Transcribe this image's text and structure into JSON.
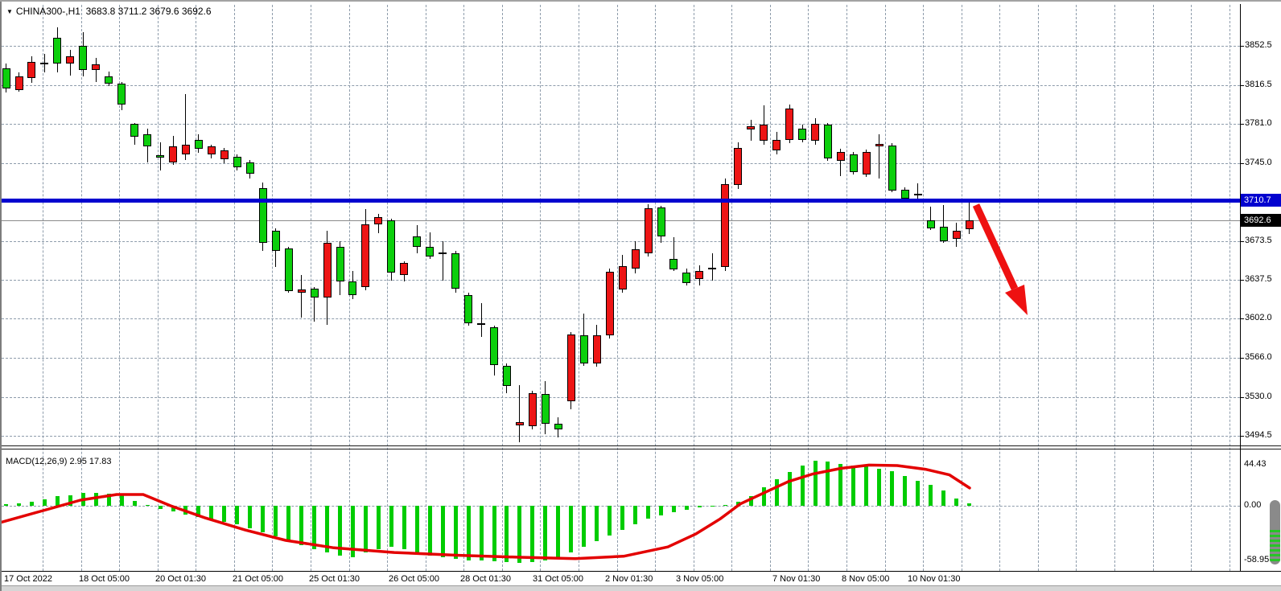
{
  "window": {
    "dropdown_icon": "▼",
    "symbol_period": "CHINA300-,H1",
    "header_ohlc": "3683.8 3711.2 3679.6 3692.6"
  },
  "colors": {
    "bull": "#ed1515",
    "bear": "#0ccf0c",
    "wick": "#000000",
    "grid": "#8e9cab",
    "blue_line": "#0202cf",
    "blue_label_bg": "#0202cf",
    "current_label_bg": "#000000",
    "macd_histogram": "#00cc00",
    "macd_signal": "#e30000",
    "arrow": "#ee1111"
  },
  "price_axis": {
    "ticks": [
      3852.5,
      3816.5,
      3781.0,
      3745.0,
      3673.5,
      3637.5,
      3602.0,
      3566.0,
      3530.0,
      3494.5
    ],
    "blue_line_price": "3710.7",
    "current_price": "3692.6"
  },
  "time_axis": {
    "labels": [
      {
        "text": "17 Oct 2022",
        "x": 5
      },
      {
        "text": "18 Oct 05:00",
        "x": 98
      },
      {
        "text": "20 Oct 01:30",
        "x": 193
      },
      {
        "text": "21 Oct 05:00",
        "x": 289
      },
      {
        "text": "25 Oct 01:30",
        "x": 384
      },
      {
        "text": "26 Oct 05:00",
        "x": 483
      },
      {
        "text": "28 Oct 01:30",
        "x": 572
      },
      {
        "text": "31 Oct 05:00",
        "x": 662
      },
      {
        "text": "2 Nov 01:30",
        "x": 752
      },
      {
        "text": "3 Nov 05:00",
        "x": 840
      },
      {
        "text": "7 Nov 01:30",
        "x": 960
      },
      {
        "text": "8 Nov 05:00",
        "x": 1046
      },
      {
        "text": "10 Nov 01:30",
        "x": 1128
      }
    ]
  },
  "macd_panel": {
    "label": "MACD(12,26,9) 2.95 17.83",
    "axis_top": "44.43",
    "axis_zero": "0.00",
    "axis_bottom": "-58.95"
  },
  "chart_data": {
    "type": "candlestick",
    "symbol": "CHINA300-",
    "timeframe": "H1",
    "title": "CHINA300-,H1",
    "last_ohlc": {
      "open": 3683.8,
      "high": 3711.2,
      "low": 3679.6,
      "close": 3692.6
    },
    "ylim": [
      3488,
      3872
    ],
    "horizontal_level": 3710.7,
    "current_price": 3692.6,
    "candles_ohlc": [
      [
        3832.0,
        3836.0,
        3810.0,
        3813.5
      ],
      [
        3812.0,
        3828.1,
        3810.5,
        3824.5
      ],
      [
        3823.0,
        3842.9,
        3818.6,
        3837.7
      ],
      [
        3836.0,
        3845.1,
        3828.1,
        3837.0
      ],
      [
        3859.9,
        3869.4,
        3828.0,
        3836.2
      ],
      [
        3836.2,
        3848.8,
        3825.2,
        3842.9
      ],
      [
        3852.5,
        3865.0,
        3824.4,
        3830.3
      ],
      [
        3830.3,
        3841.4,
        3819.3,
        3835.5
      ],
      [
        3824.5,
        3828.9,
        3815.6,
        3817.8
      ],
      [
        3817.8,
        3819.0,
        3793.5,
        3798.6
      ],
      [
        3780.9,
        3782.0,
        3761.7,
        3769.1
      ],
      [
        3771.3,
        3776.5,
        3745.5,
        3760.3
      ],
      [
        3752.0,
        3764.0,
        3738.0,
        3750.0
      ],
      [
        3745.5,
        3770.0,
        3743.0,
        3760.3
      ],
      [
        3752.9,
        3808.2,
        3748.0,
        3761.7
      ],
      [
        3766.1,
        3771.0,
        3754.0,
        3758.0
      ],
      [
        3752.9,
        3762.0,
        3749.0,
        3760.3
      ],
      [
        3748.4,
        3759.0,
        3745.0,
        3756.6
      ],
      [
        3750.7,
        3753.0,
        3738.0,
        3741.1
      ],
      [
        3745.5,
        3748.0,
        3730.8,
        3735.2
      ],
      [
        3721.9,
        3727.1,
        3664.4,
        3671.8
      ],
      [
        3682.8,
        3685.0,
        3649.6,
        3664.4
      ],
      [
        3666.6,
        3668.0,
        3626.0,
        3627.5
      ],
      [
        3626.0,
        3642.3,
        3603.2,
        3629.0
      ],
      [
        3629.7,
        3631.0,
        3599.5,
        3621.6
      ],
      [
        3621.6,
        3682.8,
        3596.5,
        3671.8
      ],
      [
        3668.1,
        3673.3,
        3623.8,
        3636.4
      ],
      [
        3636.4,
        3646.0,
        3620.1,
        3623.8
      ],
      [
        3631.2,
        3702.7,
        3628.0,
        3688.7
      ],
      [
        3688.7,
        3698.4,
        3680.6,
        3695.4
      ],
      [
        3692.4,
        3694.0,
        3637.1,
        3644.5
      ],
      [
        3642.3,
        3654.8,
        3636.4,
        3653.3
      ],
      [
        3677.6,
        3687.9,
        3662.2,
        3668.1
      ],
      [
        3668.1,
        3681.3,
        3656.8,
        3659.2
      ],
      [
        3661.0,
        3673.3,
        3637.1,
        3663.0
      ],
      [
        3662.2,
        3664.0,
        3626.0,
        3629.7
      ],
      [
        3623.8,
        3626.0,
        3595.8,
        3598.0
      ],
      [
        3596.5,
        3616.4,
        3585.5,
        3598.0
      ],
      [
        3594.3,
        3596.0,
        3549.9,
        3559.6
      ],
      [
        3558.8,
        3561.0,
        3533.8,
        3540.4
      ],
      [
        3504.2,
        3541.2,
        3488.7,
        3507.2
      ],
      [
        3503.5,
        3536.0,
        3500.6,
        3533.8
      ],
      [
        3533.1,
        3544.9,
        3496.1,
        3505.7
      ],
      [
        3505.7,
        3511.6,
        3493.2,
        3500.6
      ],
      [
        3526.5,
        3589.8,
        3519.1,
        3587.6
      ],
      [
        3586.9,
        3606.8,
        3559.0,
        3561.1
      ],
      [
        3561.1,
        3596.5,
        3558.0,
        3586.9
      ],
      [
        3586.9,
        3648.1,
        3584.0,
        3645.1
      ],
      [
        3628.9,
        3660.7,
        3626.0,
        3650.3
      ],
      [
        3648.1,
        3673.3,
        3643.6,
        3665.8
      ],
      [
        3662.2,
        3707.1,
        3659.2,
        3703.4
      ],
      [
        3704.2,
        3706.0,
        3671.8,
        3677.6
      ],
      [
        3657.0,
        3676.9,
        3645.8,
        3647.3
      ],
      [
        3644.4,
        3648.0,
        3632.7,
        3634.9
      ],
      [
        3638.6,
        3651.0,
        3632.7,
        3645.8
      ],
      [
        3647.5,
        3662.2,
        3637.1,
        3648.8
      ],
      [
        3649.6,
        3730.7,
        3646.0,
        3725.5
      ],
      [
        3724.8,
        3763.9,
        3721.0,
        3758.8
      ],
      [
        3776.0,
        3784.7,
        3765.4,
        3778.7
      ],
      [
        3765.4,
        3797.9,
        3762.0,
        3780.2
      ],
      [
        3756.6,
        3773.6,
        3752.9,
        3766.1
      ],
      [
        3766.1,
        3798.6,
        3763.0,
        3794.9
      ],
      [
        3776.5,
        3780.2,
        3764.0,
        3766.1
      ],
      [
        3765.4,
        3786.1,
        3761.7,
        3781.0
      ],
      [
        3780.2,
        3782.0,
        3747.0,
        3749.2
      ],
      [
        3747.0,
        3758.1,
        3733.0,
        3755.1
      ],
      [
        3752.9,
        3755.0,
        3734.4,
        3736.6
      ],
      [
        3734.4,
        3757.0,
        3732.2,
        3755.1
      ],
      [
        3760.3,
        3771.3,
        3730.8,
        3762.5
      ],
      [
        3761.0,
        3763.0,
        3718.2,
        3719.7
      ],
      [
        3720.4,
        3722.6,
        3710.1,
        3712.3
      ],
      [
        3716.5,
        3726.3,
        3710.8,
        3716.8
      ],
      [
        3692.4,
        3704.9,
        3683.5,
        3685.1
      ],
      [
        3686.5,
        3706.4,
        3671.8,
        3673.3
      ],
      [
        3675.5,
        3690.2,
        3668.1,
        3682.8
      ],
      [
        3683.8,
        3711.2,
        3679.6,
        3692.6
      ]
    ],
    "indicator": {
      "type": "MACD",
      "params": [
        12,
        26,
        9
      ],
      "main_value": 2.95,
      "signal_value": 17.83,
      "ylim": [
        -61,
        48
      ],
      "histogram": [
        1.7,
        2.7,
        4,
        7,
        10,
        11.5,
        13.5,
        14,
        13.3,
        12.5,
        5,
        1,
        -3,
        -6,
        -9,
        -12,
        -15,
        -17,
        -20,
        -24,
        -28,
        -33,
        -38,
        -42,
        -46,
        -50,
        -53,
        -55,
        -50,
        -46,
        -44,
        -46,
        -50,
        -53,
        -55,
        -57,
        -58,
        -58.5,
        -59,
        -60,
        -61,
        -60,
        -58,
        -55,
        -50,
        -44,
        -38,
        -32,
        -26,
        -20,
        -14,
        -10,
        -7,
        -4,
        -2,
        -1,
        1,
        4,
        10,
        20,
        28,
        36,
        43,
        48,
        47,
        45,
        43,
        42,
        40,
        37,
        32,
        27,
        22,
        16,
        8,
        3
      ],
      "signal_points": [
        [
          0,
          -18
        ],
        [
          50,
          -6
        ],
        [
          100,
          6
        ],
        [
          145,
          12
        ],
        [
          178,
          12
        ],
        [
          212,
          0
        ],
        [
          255,
          -13
        ],
        [
          305,
          -26
        ],
        [
          355,
          -37
        ],
        [
          415,
          -45
        ],
        [
          490,
          -50
        ],
        [
          570,
          -53
        ],
        [
          645,
          -55
        ],
        [
          715,
          -56.5
        ],
        [
          775,
          -54
        ],
        [
          830,
          -44
        ],
        [
          865,
          -30
        ],
        [
          895,
          -14
        ],
        [
          920,
          2
        ],
        [
          950,
          14
        ],
        [
          980,
          26
        ],
        [
          1010,
          34
        ],
        [
          1045,
          40
        ],
        [
          1080,
          43.5
        ],
        [
          1115,
          43
        ],
        [
          1150,
          39
        ],
        [
          1180,
          33
        ],
        [
          1205,
          19
        ]
      ]
    }
  },
  "annotations": {
    "arrow": {
      "direction": "down",
      "color": "#ee1111",
      "from_price": 3709,
      "to_price": 3608
    }
  }
}
